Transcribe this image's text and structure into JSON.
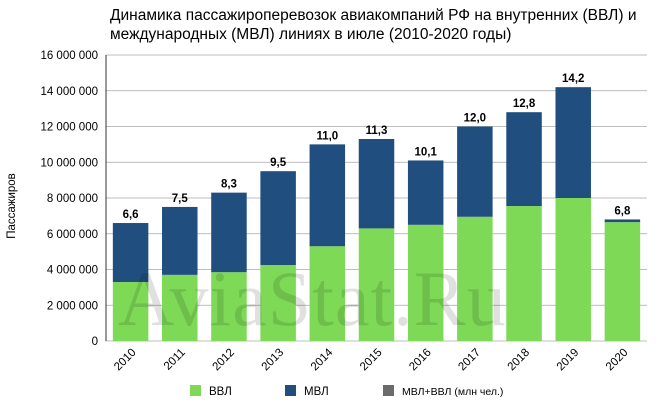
{
  "chart_data": {
    "type": "bar",
    "stacked": true,
    "title": "Динамика пассажироперевозок авиакомпаний РФ на внутренних (ВВЛ) и международных (МВЛ) линиях в июле (2010-2020 годы)",
    "ylabel": "Пассажиров",
    "xlabel": "",
    "categories": [
      "2010",
      "2011",
      "2012",
      "2013",
      "2014",
      "2015",
      "2016",
      "2017",
      "2018",
      "2019",
      "2020"
    ],
    "ylim": [
      0,
      16000000
    ],
    "yticks": [
      0,
      2000000,
      4000000,
      6000000,
      8000000,
      10000000,
      12000000,
      14000000,
      16000000
    ],
    "ytick_labels": [
      "0",
      "2 000 000",
      "4 000 000",
      "6 000 000",
      "8 000 000",
      "10 000 000",
      "12 000 000",
      "14 000 000",
      "16 000 000"
    ],
    "series": [
      {
        "name": "ВВЛ",
        "color": "#7ed957",
        "values": [
          3300000,
          3700000,
          3850000,
          4250000,
          5300000,
          6300000,
          6500000,
          6950000,
          7550000,
          8000000,
          6650000
        ]
      },
      {
        "name": "МВЛ",
        "color": "#1f4e7f",
        "values": [
          3300000,
          3800000,
          4450000,
          5250000,
          5700000,
          5000000,
          3600000,
          5050000,
          5250000,
          6200000,
          150000
        ]
      },
      {
        "name": "МВЛ+ВВЛ (млн чел.)",
        "color": "#6b6b6b",
        "labels": [
          "6,6",
          "7,5",
          "8,3",
          "9,5",
          "11,0",
          "11,3",
          "10,1",
          "12,0",
          "12,8",
          "14,2",
          "6,8"
        ]
      }
    ],
    "grid": true,
    "legend": "bottom"
  },
  "watermark": "AviaStat.Ru"
}
